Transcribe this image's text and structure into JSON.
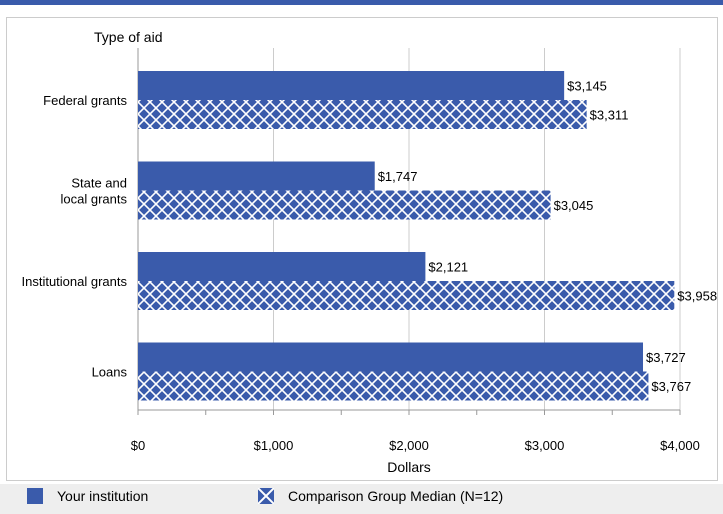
{
  "colors": {
    "accent": "#3a5bab",
    "grid": "#cccccc"
  },
  "chart_data": {
    "type": "bar",
    "orientation": "horizontal",
    "title": "Type of aid",
    "xlabel": "Dollars",
    "categories": [
      "Federal grants",
      "State and\nlocal grants",
      "Institutional grants",
      "Loans"
    ],
    "series": [
      {
        "name": "Your institution",
        "pattern": "solid",
        "values": [
          3145,
          1747,
          2121,
          3727
        ],
        "labels": [
          "$3,145",
          "$1,747",
          "$2,121",
          "$3,727"
        ]
      },
      {
        "name": "Comparison Group Median (N=12)",
        "pattern": "crosshatch",
        "values": [
          3311,
          3045,
          3958,
          3767
        ],
        "labels": [
          "$3,311",
          "$3,045",
          "$3,958",
          "$3,767"
        ]
      }
    ],
    "xlim": [
      0,
      4000
    ],
    "xticks": [
      0,
      1000,
      2000,
      3000,
      4000
    ],
    "xtick_labels": [
      "$0",
      "$1,000",
      "$2,000",
      "$3,000",
      "$4,000"
    ],
    "grid": true,
    "legend": "bottom"
  }
}
